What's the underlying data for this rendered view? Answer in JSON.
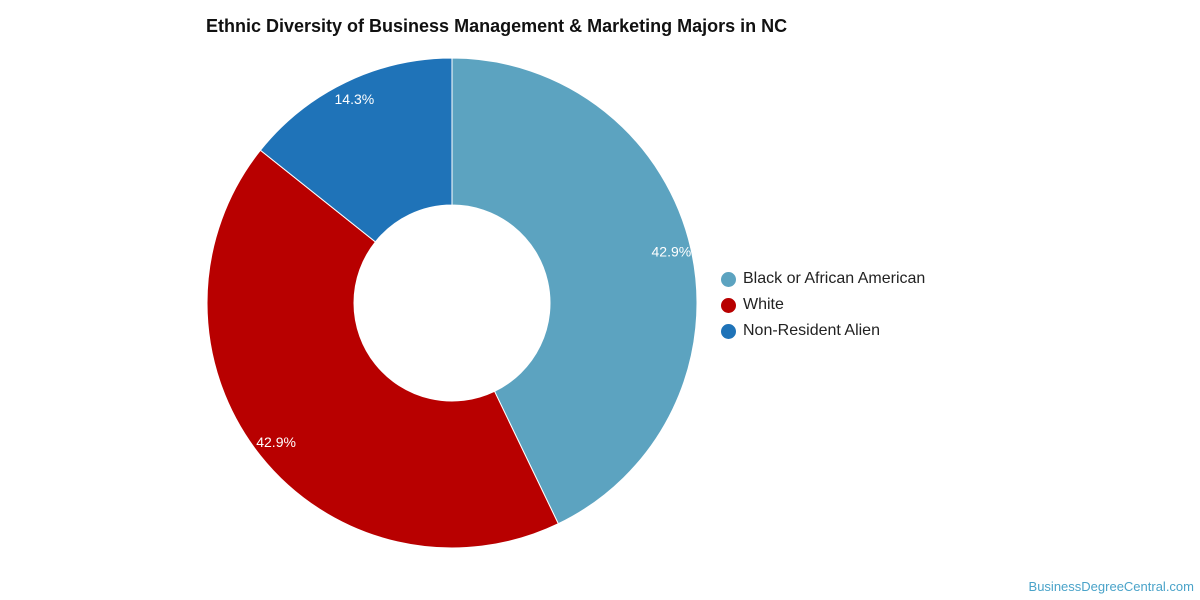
{
  "chart_data": {
    "type": "pie",
    "donut": true,
    "title": "Ethnic Diversity of Business Management & Marketing Majors in NC",
    "slices": [
      {
        "label": "Black or African American",
        "value": 42.9,
        "value_label": "42.9%",
        "color": "#5ca3c0"
      },
      {
        "label": "White",
        "value": 42.9,
        "value_label": "42.9%",
        "color": "#b80000"
      },
      {
        "label": "Non-Resident Alien",
        "value": 14.3,
        "value_label": "14.3%",
        "color": "#1f73b8"
      }
    ],
    "legend_position": "right"
  },
  "credit": "BusinessDegreeCentral.com"
}
